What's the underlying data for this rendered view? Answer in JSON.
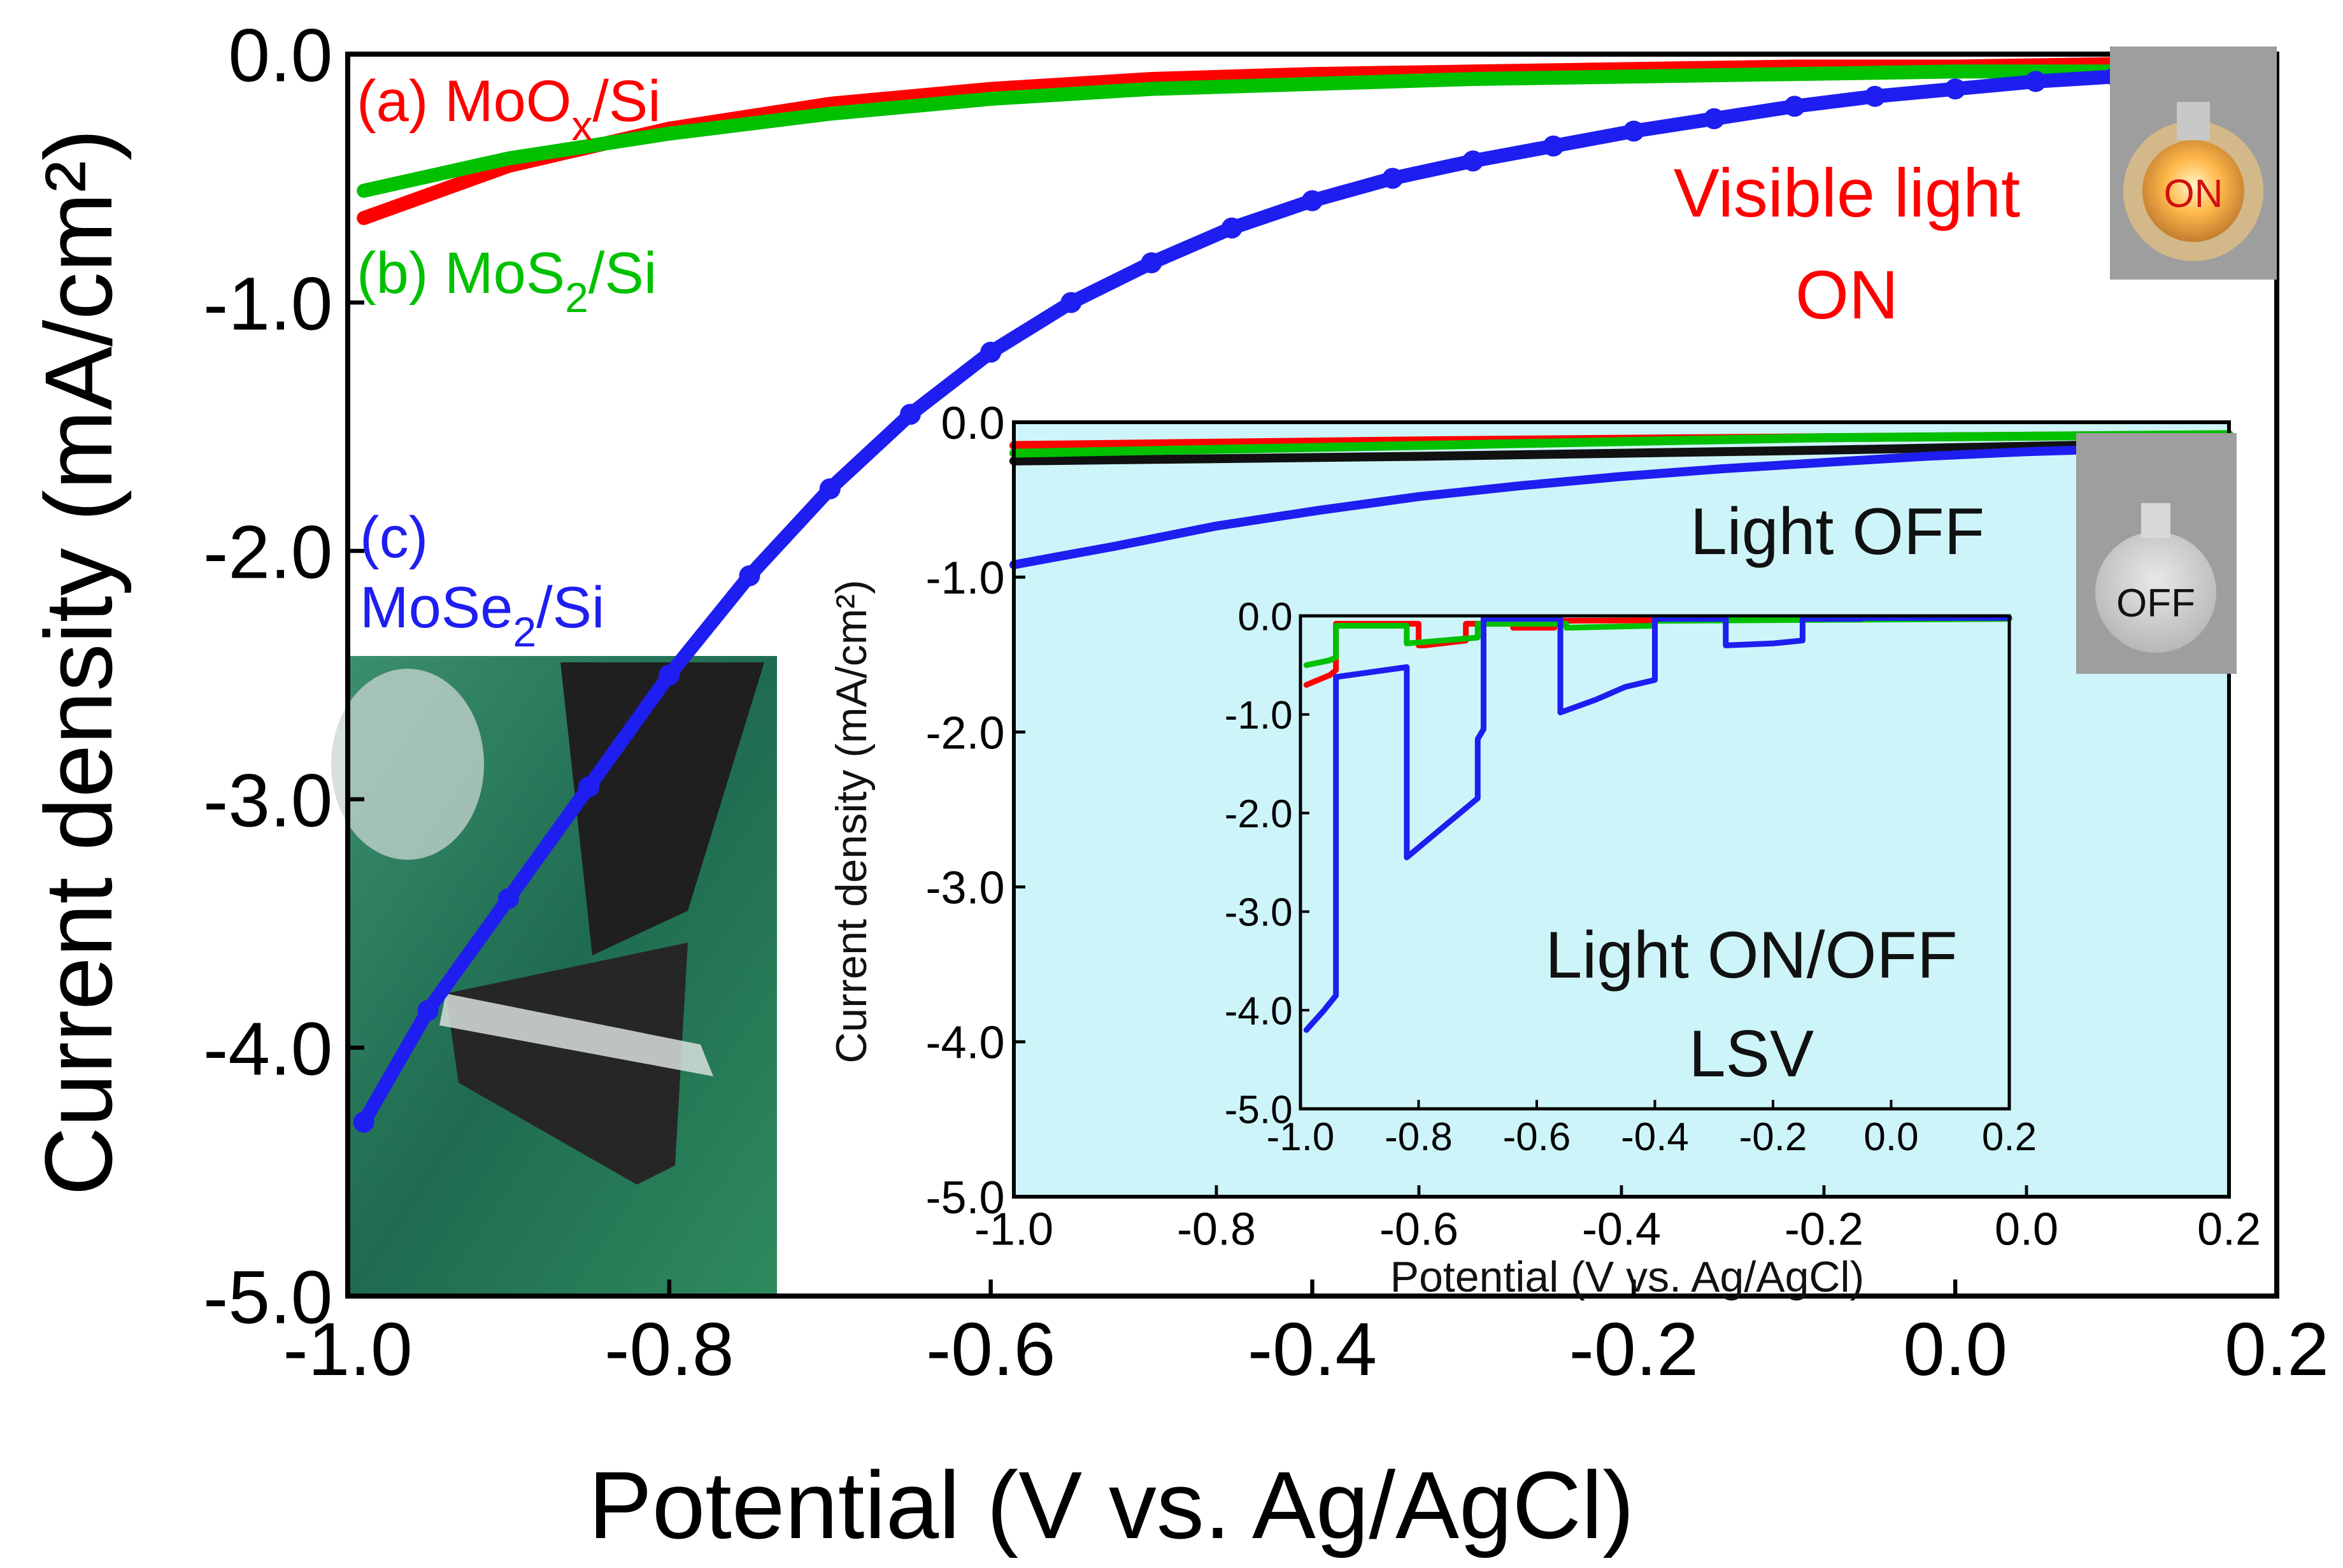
{
  "colors": {
    "moox": "#ff0000",
    "mos2": "#00c000",
    "mose2": "#1e1ef0",
    "inset_bg": "#cdf5f9",
    "photo_bg": "#2a7a5a",
    "bulb_box": "#9e9e9e"
  },
  "chart_data": [
    {
      "id": "main",
      "type": "line",
      "xlabel": "Potential (V vs. Ag/AgCl)",
      "ylabel": "Current density (mA/cm²)",
      "xlim": [
        -1.0,
        0.2
      ],
      "ylim": [
        -5.0,
        0.0
      ],
      "xticks": [
        {
          "v": -1.0,
          "label": "-1.0"
        },
        {
          "v": -0.8,
          "label": "-0.8"
        },
        {
          "v": -0.6,
          "label": "-0.6"
        },
        {
          "v": -0.4,
          "label": "-0.4"
        },
        {
          "v": -0.2,
          "label": "-0.2"
        },
        {
          "v": 0.0,
          "label": "0.0"
        },
        {
          "v": 0.2,
          "label": "0.2"
        }
      ],
      "yticks": [
        {
          "v": 0.0,
          "label": "0.0"
        },
        {
          "v": -1.0,
          "label": "-1.0"
        },
        {
          "v": -2.0,
          "label": "-2.0"
        },
        {
          "v": -3.0,
          "label": "-3.0"
        },
        {
          "v": -4.0,
          "label": "-4.0"
        },
        {
          "v": -5.0,
          "label": "-5.0"
        }
      ],
      "series": [
        {
          "key": "moox",
          "label_pre": "(a) MoO",
          "label_sub": "x",
          "label_post": "/Si",
          "x": [
            -0.99,
            -0.9,
            -0.8,
            -0.7,
            -0.6,
            -0.5,
            -0.4,
            -0.3,
            -0.2,
            -0.1,
            0.0,
            0.1,
            0.19
          ],
          "y": [
            -0.66,
            -0.45,
            -0.3,
            -0.2,
            -0.14,
            -0.1,
            -0.08,
            -0.07,
            -0.06,
            -0.05,
            -0.05,
            -0.04,
            -0.04
          ]
        },
        {
          "key": "mos2",
          "label_pre": "(b) MoS",
          "label_sub": "2",
          "label_post": "/Si",
          "x": [
            -0.99,
            -0.9,
            -0.8,
            -0.7,
            -0.6,
            -0.5,
            -0.4,
            -0.3,
            -0.2,
            -0.1,
            0.0,
            0.1,
            0.19
          ],
          "y": [
            -0.55,
            -0.42,
            -0.32,
            -0.24,
            -0.18,
            -0.14,
            -0.12,
            -0.1,
            -0.09,
            -0.08,
            -0.07,
            -0.07,
            -0.07
          ]
        },
        {
          "key": "mose2",
          "label_pre": "MoSe",
          "label_sub": "2",
          "label_post": "/Si",
          "label_top": "(c)",
          "x": [
            -0.99,
            -0.95,
            -0.9,
            -0.85,
            -0.8,
            -0.75,
            -0.7,
            -0.65,
            -0.6,
            -0.55,
            -0.5,
            -0.45,
            -0.4,
            -0.35,
            -0.3,
            -0.25,
            -0.2,
            -0.15,
            -0.1,
            -0.05,
            0.0,
            0.05,
            0.1,
            0.15,
            0.18
          ],
          "y": [
            -4.3,
            -3.85,
            -3.4,
            -2.95,
            -2.5,
            -2.1,
            -1.75,
            -1.45,
            -1.2,
            -1.0,
            -0.84,
            -0.7,
            -0.59,
            -0.5,
            -0.43,
            -0.37,
            -0.31,
            -0.26,
            -0.21,
            -0.17,
            -0.14,
            -0.11,
            -0.09,
            -0.08,
            -0.08
          ]
        }
      ],
      "annotations": {
        "light": "Visible light",
        "state": "ON",
        "bulb": "ON"
      }
    },
    {
      "id": "inset1",
      "type": "line",
      "xlabel": "Potential (V vs. Ag/AgCl)",
      "ylabel": "Current density (mA/cm²)",
      "xlim": [
        -1.0,
        0.2
      ],
      "ylim": [
        -5.0,
        0.0
      ],
      "xticks": [
        {
          "v": -1.0,
          "label": "-1.0"
        },
        {
          "v": -0.8,
          "label": "-0.8"
        },
        {
          "v": -0.6,
          "label": "-0.6"
        },
        {
          "v": -0.4,
          "label": "-0.4"
        },
        {
          "v": -0.2,
          "label": "-0.2"
        },
        {
          "v": 0.0,
          "label": "0.0"
        },
        {
          "v": 0.2,
          "label": "0.2"
        }
      ],
      "yticks": [
        {
          "v": 0.0,
          "label": "0.0"
        },
        {
          "v": -1.0,
          "label": "-1.0"
        },
        {
          "v": -2.0,
          "label": "-2.0"
        },
        {
          "v": -3.0,
          "label": "-3.0"
        },
        {
          "v": -4.0,
          "label": "-4.0"
        },
        {
          "v": -5.0,
          "label": "-5.0"
        }
      ],
      "series": [
        {
          "key": "black",
          "x": [
            -1.0,
            -0.6,
            -0.2,
            0.2
          ],
          "y": [
            -0.25,
            -0.22,
            -0.18,
            -0.13
          ]
        },
        {
          "key": "moox",
          "x": [
            -1.0,
            -0.6,
            -0.2,
            0.2
          ],
          "y": [
            -0.15,
            -0.12,
            -0.1,
            -0.08
          ]
        },
        {
          "key": "mos2",
          "x": [
            -1.0,
            -0.6,
            -0.2,
            0.2
          ],
          "y": [
            -0.2,
            -0.15,
            -0.1,
            -0.08
          ]
        },
        {
          "key": "mose2",
          "x": [
            -1.0,
            -0.9,
            -0.8,
            -0.7,
            -0.6,
            -0.5,
            -0.4,
            -0.3,
            -0.2,
            -0.1,
            0.0,
            0.1,
            0.18
          ],
          "y": [
            -0.92,
            -0.8,
            -0.67,
            -0.57,
            -0.48,
            -0.41,
            -0.35,
            -0.3,
            -0.26,
            -0.22,
            -0.19,
            -0.17,
            -0.15
          ]
        }
      ],
      "annotations": {
        "light": "Light OFF",
        "bulb": "OFF"
      }
    },
    {
      "id": "inset2",
      "type": "line",
      "xlim": [
        -1.0,
        0.2
      ],
      "ylim": [
        -5.0,
        0.0
      ],
      "xticks": [
        {
          "v": -1.0,
          "label": "-1.0"
        },
        {
          "v": -0.8,
          "label": "-0.8"
        },
        {
          "v": -0.6,
          "label": "-0.6"
        },
        {
          "v": -0.4,
          "label": "-0.4"
        },
        {
          "v": -0.2,
          "label": "-0.2"
        },
        {
          "v": 0.0,
          "label": "0.0"
        },
        {
          "v": 0.2,
          "label": "0.2"
        }
      ],
      "yticks": [
        {
          "v": 0.0,
          "label": "0.0"
        },
        {
          "v": -1.0,
          "label": "-1.0"
        },
        {
          "v": -2.0,
          "label": "-2.0"
        },
        {
          "v": -3.0,
          "label": "-3.0"
        },
        {
          "v": -4.0,
          "label": "-4.0"
        },
        {
          "v": -5.0,
          "label": "-5.0"
        }
      ],
      "series": [
        {
          "key": "moox",
          "x": [
            -0.99,
            -0.95,
            -0.94,
            -0.94,
            -0.8,
            -0.8,
            -0.79,
            -0.72,
            -0.72,
            -0.64,
            -0.64,
            -0.57,
            -0.57,
            0.2
          ],
          "y": [
            -0.7,
            -0.6,
            -0.55,
            -0.08,
            -0.08,
            -0.3,
            -0.3,
            -0.25,
            -0.08,
            -0.08,
            -0.12,
            -0.12,
            -0.05,
            -0.03
          ]
        },
        {
          "key": "mos2",
          "x": [
            -0.99,
            -0.95,
            -0.94,
            -0.94,
            -0.82,
            -0.82,
            -0.7,
            -0.7,
            -0.55,
            -0.55,
            -0.4,
            -0.4,
            0.2
          ],
          "y": [
            -0.5,
            -0.45,
            -0.42,
            -0.1,
            -0.1,
            -0.28,
            -0.22,
            -0.08,
            -0.08,
            -0.12,
            -0.1,
            -0.05,
            -0.03
          ]
        },
        {
          "key": "mose2",
          "x": [
            -0.99,
            -0.96,
            -0.94,
            -0.94,
            -0.82,
            -0.82,
            -0.8,
            -0.75,
            -0.7,
            -0.7,
            -0.69,
            -0.69,
            -0.56,
            -0.56,
            -0.5,
            -0.45,
            -0.4,
            -0.4,
            -0.4,
            -0.28,
            -0.28,
            -0.2,
            -0.15,
            -0.15,
            -0.05,
            -0.05,
            0.2
          ],
          "y": [
            -4.2,
            -4.0,
            -3.85,
            -0.62,
            -0.52,
            -2.45,
            -2.35,
            -2.1,
            -1.85,
            -1.25,
            -1.15,
            -0.03,
            -0.03,
            -0.98,
            -0.85,
            -0.72,
            -0.65,
            -0.55,
            -0.03,
            -0.03,
            -0.3,
            -0.28,
            -0.25,
            -0.03,
            -0.03,
            -0.02,
            -0.02
          ]
        }
      ],
      "annotations": {
        "line1": "Light ON/OFF",
        "line2": "LSV"
      }
    }
  ]
}
